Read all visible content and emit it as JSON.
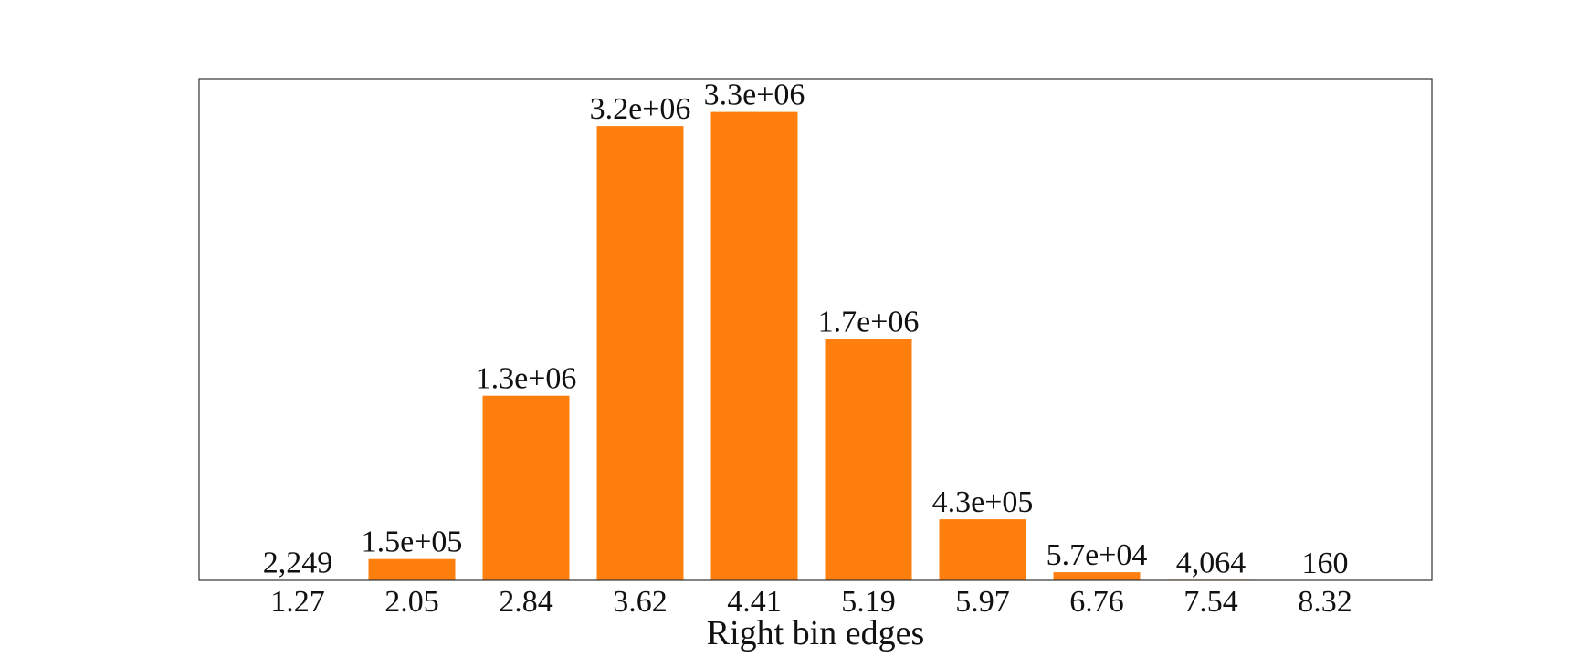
{
  "chart_data": {
    "type": "bar",
    "title": "",
    "xlabel": "Right bin edges",
    "ylabel": "",
    "categories": [
      "1.27",
      "2.05",
      "2.84",
      "3.62",
      "4.41",
      "5.19",
      "5.97",
      "6.76",
      "7.54",
      "8.32"
    ],
    "values": [
      2249,
      150000,
      1300000,
      3200000,
      3300000,
      1700000,
      430000,
      57000,
      4064,
      160
    ],
    "data_labels": [
      "2,249",
      "1.5e+05",
      "1.3e+06",
      "3.2e+06",
      "3.3e+06",
      "1.7e+06",
      "4.3e+05",
      "5.7e+04",
      "4,064",
      "160"
    ],
    "ylim": [
      0,
      3400000
    ],
    "y_ticks_visible": false,
    "grid": false,
    "legend": "none",
    "bar_color": "#ff7f0e",
    "frame_color": "#333333",
    "text_color": "#111111"
  }
}
